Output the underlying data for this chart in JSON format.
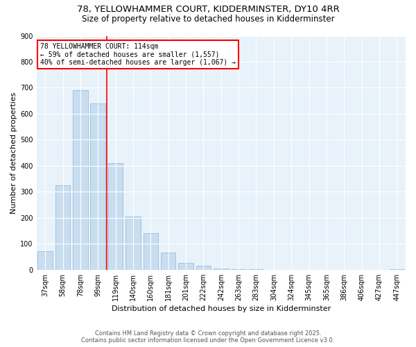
{
  "title_line1": "78, YELLOWHAMMER COURT, KIDDERMINSTER, DY10 4RR",
  "title_line2": "Size of property relative to detached houses in Kidderminster",
  "xlabel": "Distribution of detached houses by size in Kidderminster",
  "ylabel": "Number of detached properties",
  "categories": [
    "37sqm",
    "58sqm",
    "78sqm",
    "99sqm",
    "119sqm",
    "140sqm",
    "160sqm",
    "181sqm",
    "201sqm",
    "222sqm",
    "242sqm",
    "263sqm",
    "283sqm",
    "304sqm",
    "324sqm",
    "345sqm",
    "365sqm",
    "386sqm",
    "406sqm",
    "427sqm",
    "447sqm"
  ],
  "values": [
    70,
    325,
    690,
    640,
    410,
    205,
    140,
    65,
    25,
    15,
    5,
    2,
    1,
    0,
    0,
    0,
    0,
    0,
    0,
    0,
    2
  ],
  "bar_color": "#c8ddf0",
  "bar_edge_color": "#9bbdd8",
  "vline_x_index": 3,
  "vline_color": "red",
  "annotation_text": "78 YELLOWHAMMER COURT: 114sqm\n← 59% of detached houses are smaller (1,557)\n40% of semi-detached houses are larger (1,067) →",
  "annotation_box_color": "white",
  "annotation_box_edge": "red",
  "ylim": [
    0,
    900
  ],
  "yticks": [
    0,
    100,
    200,
    300,
    400,
    500,
    600,
    700,
    800,
    900
  ],
  "background_color": "#e8f2fa",
  "footer_line1": "Contains HM Land Registry data © Crown copyright and database right 2025.",
  "footer_line2": "Contains public sector information licensed under the Open Government Licence v3.0.",
  "title_fontsize": 9.5,
  "subtitle_fontsize": 8.5,
  "axis_label_fontsize": 8,
  "tick_fontsize": 7,
  "annotation_fontsize": 7,
  "footer_fontsize": 6
}
